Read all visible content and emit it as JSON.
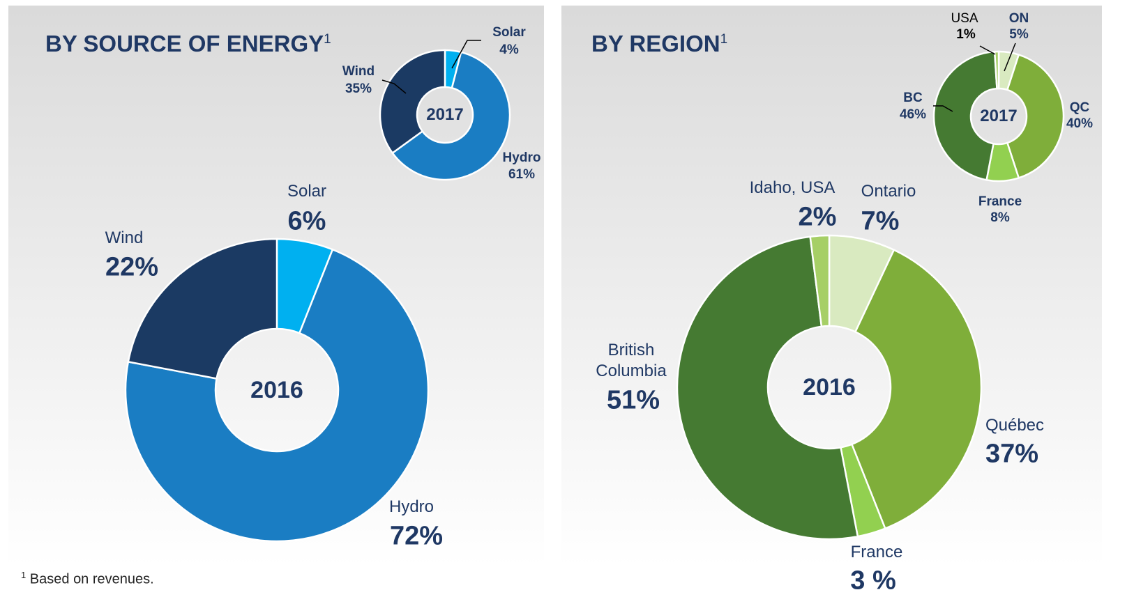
{
  "chart_data": [
    {
      "type": "donut",
      "title": "BY SOURCE OF ENERGY",
      "title_note": "1",
      "center_label": "2016",
      "categories": [
        "Solar",
        "Hydro",
        "Wind"
      ],
      "values": [
        6,
        72,
        22
      ],
      "value_labels": [
        "6%",
        "72%",
        "22%"
      ],
      "colors": [
        "#00b0f0",
        "#1a7dc3",
        "#1b3a63"
      ]
    },
    {
      "type": "donut",
      "center_label": "2017",
      "categories": [
        "Solar",
        "Hydro",
        "Wind"
      ],
      "values": [
        4,
        61,
        35
      ],
      "value_labels": [
        "4%",
        "61%",
        "35%"
      ],
      "colors": [
        "#00b0f0",
        "#1a7dc3",
        "#1b3a63"
      ]
    },
    {
      "type": "donut",
      "title": "BY REGION",
      "title_note": "1",
      "center_label": "2016",
      "categories": [
        "Ontario",
        "Québec",
        "France",
        "British Columbia",
        "Idaho, USA"
      ],
      "values": [
        7,
        37,
        3,
        51,
        2
      ],
      "value_labels": [
        "7%",
        "37%",
        "3 %",
        "51%",
        "2%"
      ],
      "colors": [
        "#d9eac0",
        "#7fae3a",
        "#92d050",
        "#457a32",
        "#a6cf66"
      ]
    },
    {
      "type": "donut",
      "center_label": "2017",
      "categories": [
        "ON",
        "QC",
        "France",
        "BC",
        "USA"
      ],
      "values": [
        5,
        40,
        8,
        46,
        1
      ],
      "value_labels": [
        "5%",
        "40%",
        "8%",
        "46%",
        "1%"
      ],
      "colors": [
        "#d9eac0",
        "#7fae3a",
        "#92d050",
        "#457a32",
        "#a6cf66"
      ]
    }
  ],
  "footnote": {
    "marker": "1",
    "text": "Based on revenues."
  }
}
